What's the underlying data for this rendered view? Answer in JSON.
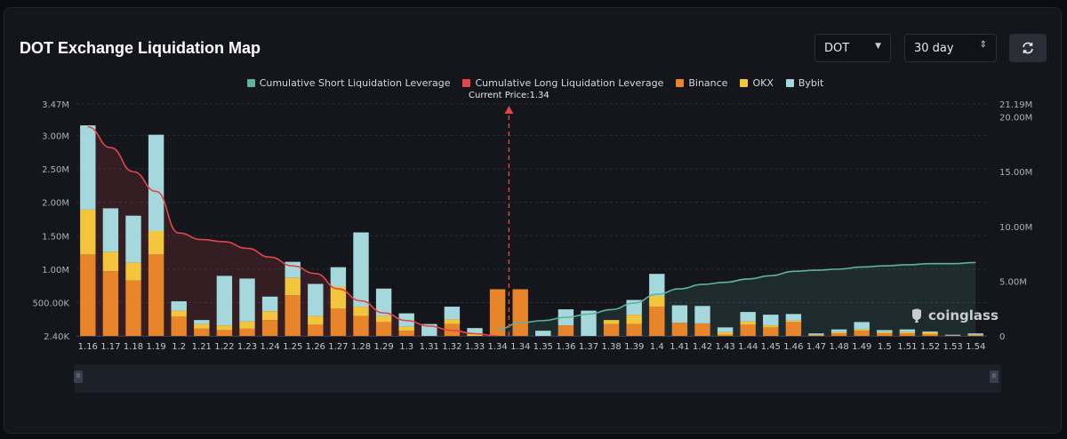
{
  "header": {
    "title": "DOT Exchange Liquidation Map",
    "coin_select": "DOT",
    "range_select": "30 day"
  },
  "watermark": "coinglass",
  "colors": {
    "binance": "#e8852a",
    "okx": "#f2c53d",
    "bybit": "#a5d8dc",
    "short_line": "#5fb39a",
    "long_line": "#e0474c",
    "current_price": "#e0474c"
  },
  "chart_data": {
    "type": "bar",
    "title": "DOT Exchange Liquidation Map",
    "legend": [
      {
        "name": "Cumulative Short Liquidation Leverage",
        "color": "#5fb39a",
        "kind": "line"
      },
      {
        "name": "Cumulative Long Liquidation Leverage",
        "color": "#e0474c",
        "kind": "line"
      },
      {
        "name": "Binance",
        "color": "#e8852a",
        "kind": "bar"
      },
      {
        "name": "OKX",
        "color": "#f2c53d",
        "kind": "bar"
      },
      {
        "name": "Bybit",
        "color": "#a5d8dc",
        "kind": "bar"
      }
    ],
    "legend_position": "top-center",
    "current_price_label": "Current Price:1.34",
    "current_price": 1.34,
    "categories": [
      "1.16",
      "1.17",
      "1.18",
      "1.19",
      "1.2",
      "1.21",
      "1.22",
      "1.23",
      "1.24",
      "1.25",
      "1.26",
      "1.27",
      "1.28",
      "1.29",
      "1.3",
      "1.31",
      "1.32",
      "1.33",
      "1.34",
      "1.34",
      "1.35",
      "1.36",
      "1.37",
      "1.38",
      "1.39",
      "1.4",
      "1.41",
      "1.42",
      "1.43",
      "1.44",
      "1.45",
      "1.46",
      "1.47",
      "1.48",
      "1.49",
      "1.5",
      "1.51",
      "1.52",
      "1.53",
      "1.54"
    ],
    "series": [
      {
        "name": "Binance",
        "stack": "exchange",
        "values": [
          1220000,
          970000,
          830000,
          1220000,
          290000,
          110000,
          90000,
          110000,
          240000,
          610000,
          170000,
          410000,
          300000,
          210000,
          80000,
          0,
          180000,
          0,
          700000,
          700000,
          0,
          160000,
          0,
          180000,
          180000,
          440000,
          200000,
          190000,
          20000,
          170000,
          130000,
          210000,
          10000,
          40000,
          80000,
          40000,
          40000,
          30000,
          10000,
          10000
        ]
      },
      {
        "name": "OKX",
        "stack": "exchange",
        "values": [
          670000,
          290000,
          270000,
          350000,
          90000,
          70000,
          70000,
          110000,
          130000,
          260000,
          130000,
          330000,
          140000,
          90000,
          60000,
          0,
          70000,
          30000,
          0,
          0,
          0,
          0,
          0,
          60000,
          140000,
          160000,
          0,
          0,
          40000,
          50000,
          30000,
          20000,
          10000,
          20000,
          20000,
          20000,
          20000,
          30000,
          0,
          10000
        ]
      },
      {
        "name": "Bybit",
        "stack": "exchange",
        "values": [
          1260000,
          650000,
          700000,
          1440000,
          140000,
          60000,
          740000,
          640000,
          220000,
          240000,
          480000,
          290000,
          1110000,
          410000,
          200000,
          180000,
          190000,
          90000,
          0,
          0,
          80000,
          240000,
          380000,
          0,
          220000,
          330000,
          260000,
          260000,
          70000,
          140000,
          160000,
          100000,
          20000,
          40000,
          110000,
          30000,
          40000,
          10000,
          10000,
          20000
        ]
      },
      {
        "name": "Cumulative Short Liquidation Leverage",
        "axis": "right",
        "values": [
          null,
          null,
          null,
          null,
          null,
          null,
          null,
          null,
          null,
          null,
          null,
          null,
          null,
          null,
          null,
          null,
          null,
          null,
          600000,
          1200000,
          1400000,
          1700000,
          2000000,
          2400000,
          3000000,
          3800000,
          4300000,
          4700000,
          4900000,
          5200000,
          5500000,
          5900000,
          6000000,
          6100000,
          6300000,
          6400000,
          6500000,
          6600000,
          6600000,
          6700000
        ]
      },
      {
        "name": "Cumulative Long Liquidation Leverage",
        "axis": "right",
        "values": [
          19100000,
          17200000,
          15000000,
          13200000,
          9400000,
          8800000,
          8600000,
          8000000,
          7200000,
          6400000,
          5700000,
          4300000,
          3200000,
          2100000,
          1400000,
          900000,
          500000,
          200000,
          0,
          null,
          null,
          null,
          null,
          null,
          null,
          null,
          null,
          null,
          null,
          null,
          null,
          null,
          null,
          null,
          null,
          null,
          null,
          null,
          null,
          null
        ]
      }
    ],
    "y_left": {
      "ticks": [
        "2.40K",
        "500.00K",
        "1.00M",
        "1.50M",
        "2.00M",
        "2.50M",
        "3.00M",
        "3.47M"
      ],
      "ylim": [
        2400,
        3470000
      ]
    },
    "y_right": {
      "ticks": [
        "0",
        "5.00M",
        "10.00M",
        "15.00M",
        "20.00M",
        "21.19M"
      ],
      "ylim": [
        0,
        21190000
      ]
    },
    "grid": true
  }
}
